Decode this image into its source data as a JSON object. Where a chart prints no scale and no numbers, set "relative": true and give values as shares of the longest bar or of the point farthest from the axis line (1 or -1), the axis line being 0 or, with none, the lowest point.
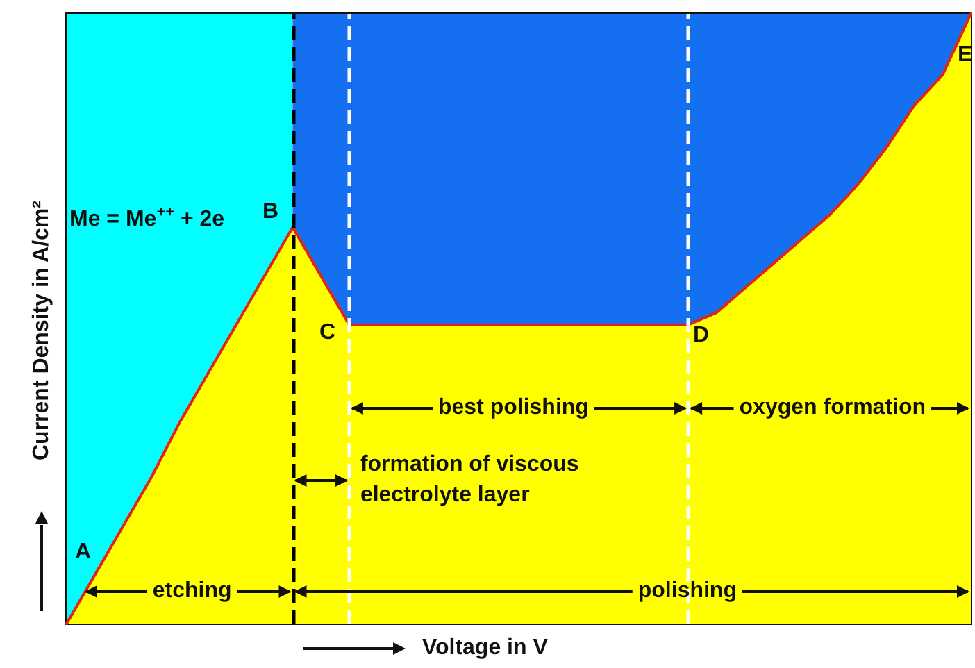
{
  "chart_data": {
    "type": "area",
    "relative": true,
    "xlabel": "Voltage in V",
    "ylabel": "Current Density in A/cm²",
    "categories": [
      null,
      null,
      null,
      null,
      null,
      null,
      null,
      null,
      null,
      null,
      null,
      null,
      null,
      null,
      null,
      null,
      null,
      null,
      null,
      null,
      null,
      null,
      null,
      null,
      null,
      null,
      null,
      null,
      null,
      null,
      null,
      null,
      null
    ],
    "series": [
      {
        "color": "#ffff00",
        "values": [
          0,
          0.08,
          0.16,
          0.24,
          0.33,
          0.41,
          0.49,
          0.57,
          0.65,
          0.57,
          0.49,
          0.49,
          0.49,
          0.49,
          0.49,
          0.49,
          0.49,
          0.49,
          0.49,
          0.49,
          0.49,
          0.49,
          0.49,
          0.51,
          0.55,
          0.59,
          0.63,
          0.67,
          0.72,
          0.78,
          0.85,
          0.9,
          1
        ]
      }
    ],
    "annotations": [
      "A",
      "B",
      "C",
      "D",
      "E",
      "Me = Me$^{++}$ + 2e",
      "etching",
      "polishing",
      "formation of viscous electrolyte layer",
      "best polishing",
      "oxygen formation"
    ]
  }
}
